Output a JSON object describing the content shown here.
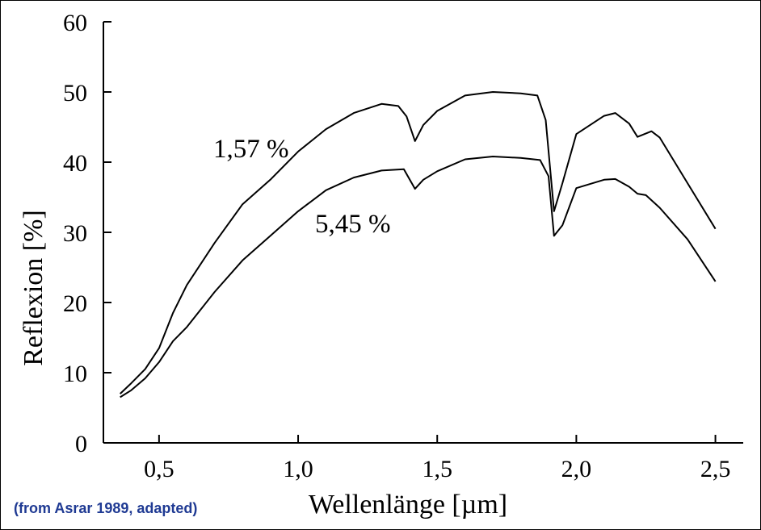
{
  "chart_data": {
    "type": "line",
    "xlabel": "Wellenlänge [µm]",
    "ylabel": "Reflexion [%]",
    "xlim": [
      0.3,
      2.6
    ],
    "ylim": [
      0,
      60
    ],
    "x_ticks": [
      0.5,
      1.0,
      1.5,
      2.0,
      2.5
    ],
    "x_tick_labels": [
      "0,5",
      "1,0",
      "1,5",
      "2,0",
      "2,5"
    ],
    "y_ticks": [
      0,
      10,
      20,
      30,
      40,
      50,
      60
    ],
    "y_tick_labels": [
      "0",
      "10",
      "20",
      "30",
      "40",
      "50",
      "60"
    ],
    "grid": false,
    "legend": "none",
    "series": [
      {
        "name": "1,57 %",
        "x": [
          0.36,
          0.4,
          0.45,
          0.5,
          0.55,
          0.6,
          0.7,
          0.8,
          0.9,
          1.0,
          1.1,
          1.2,
          1.3,
          1.36,
          1.39,
          1.42,
          1.45,
          1.5,
          1.6,
          1.7,
          1.8,
          1.86,
          1.89,
          1.92,
          1.95,
          2.0,
          2.1,
          2.14,
          2.19,
          2.22,
          2.27,
          2.3,
          2.4,
          2.5
        ],
        "y": [
          7,
          8.5,
          10.5,
          13.5,
          18.5,
          22.5,
          28.5,
          34,
          37.5,
          41.5,
          44.7,
          47,
          48.3,
          48,
          46.5,
          43,
          45.3,
          47.3,
          49.5,
          50,
          49.8,
          49.5,
          46,
          33,
          37,
          44,
          46.6,
          47,
          45.5,
          43.6,
          44.4,
          43.5,
          37,
          30.5
        ]
      },
      {
        "name": "5,45 %",
        "x": [
          0.36,
          0.4,
          0.45,
          0.5,
          0.55,
          0.6,
          0.7,
          0.8,
          0.9,
          1.0,
          1.1,
          1.2,
          1.3,
          1.38,
          1.42,
          1.45,
          1.5,
          1.6,
          1.7,
          1.8,
          1.87,
          1.9,
          1.92,
          1.95,
          2.0,
          2.1,
          2.14,
          2.19,
          2.22,
          2.25,
          2.3,
          2.4,
          2.5
        ],
        "y": [
          6.5,
          7.5,
          9.2,
          11.5,
          14.5,
          16.5,
          21.5,
          26,
          29.5,
          33,
          36,
          37.8,
          38.8,
          39,
          36.2,
          37.5,
          38.7,
          40.4,
          40.8,
          40.6,
          40.3,
          38,
          29.5,
          31,
          36.3,
          37.5,
          37.6,
          36.5,
          35.5,
          35.3,
          33.5,
          29,
          23
        ]
      }
    ],
    "annotations": [
      "1,57 %",
      "5,45 %"
    ]
  },
  "caption": "(from Asrar 1989, adapted)"
}
